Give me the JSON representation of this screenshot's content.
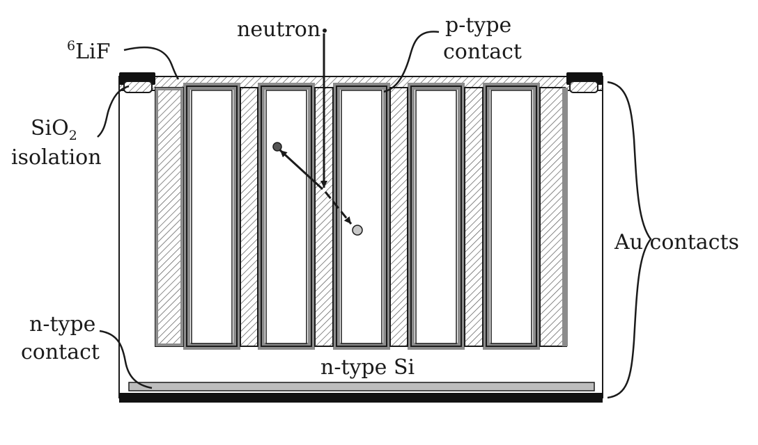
{
  "labels": {
    "lif_isotope": "6",
    "lif_compound": "LiF",
    "neutron": "neutron",
    "p_type_line1": "p-type",
    "p_type_line2": "contact",
    "sio2_base": "SiO",
    "sio2_sub": "2",
    "sio2_line2": "isolation",
    "au_contacts": "Au contacts",
    "n_type_line1": "n-type",
    "n_type_line2": "contact",
    "n_type_si": "n-type Si"
  },
  "colors": {
    "outline": "#1a1a1a",
    "hatch": "#555555",
    "oxide_fill": "#bdbdbd",
    "contact_fill": "#111111",
    "particle_fill": "#c8c8c8"
  }
}
